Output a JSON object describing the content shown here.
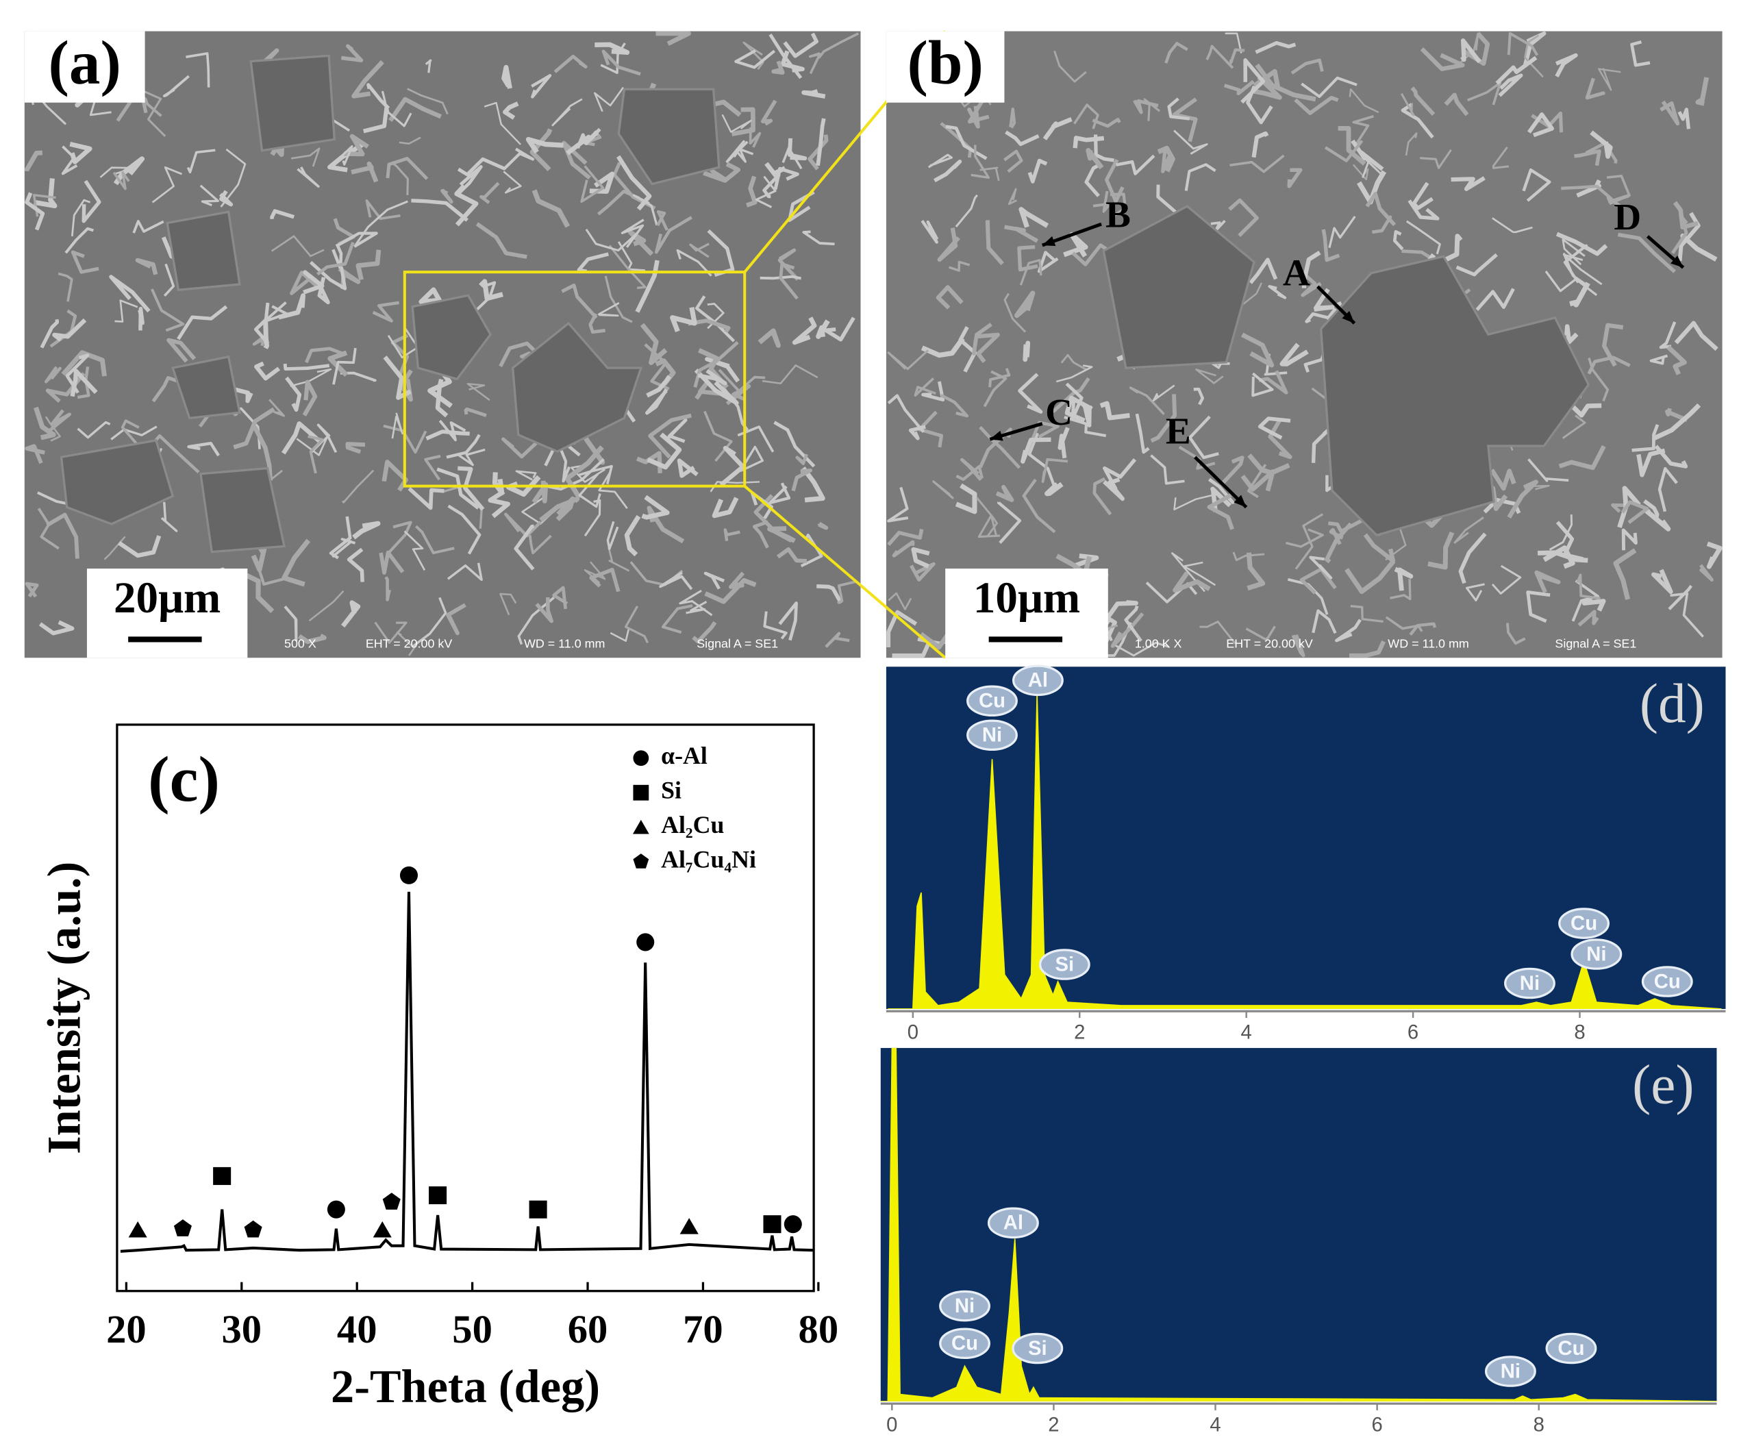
{
  "images": [
    {
      "label": "(a)",
      "scale_bar": "20μm",
      "info": [
        "500 X",
        "EHT = 20.00 kV",
        "WD = 11.0 mm",
        "Signal A = SE1"
      ]
    },
    {
      "label": "(b)",
      "scale_bar": "10μm",
      "info": [
        "1.00 K X",
        "EHT = 20.00 kV",
        "WD = 11.0 mm",
        "Signal A = SE1"
      ],
      "points": [
        "A",
        "B",
        "C",
        "D",
        "E"
      ]
    }
  ],
  "chart_data": [
    {
      "type": "line",
      "label": "(c)",
      "xlabel": "2-Theta (deg)",
      "ylabel": "Intensity (a.u.)",
      "xlim": [
        19.2,
        79.6
      ],
      "xticks": [
        20,
        30,
        40,
        50,
        60,
        70,
        80
      ],
      "ylim": [
        0,
        100
      ],
      "color": "#000000",
      "x": [
        19.5,
        21,
        24.8,
        25,
        25.2,
        28,
        28.3,
        28.6,
        31,
        35,
        38,
        38.2,
        38.4,
        42,
        42.5,
        43,
        44,
        44.5,
        45,
        46.7,
        47,
        47.3,
        55.5,
        55.7,
        55.9,
        64.6,
        65,
        65.4,
        68.8,
        75.8,
        76,
        76.2,
        77.5,
        77.7,
        77.9,
        79.5
      ],
      "values": [
        7,
        7.2,
        7.8,
        8,
        7.2,
        7.3,
        14.4,
        7.3,
        7.6,
        7.2,
        7.3,
        11,
        7.3,
        7.8,
        9,
        8,
        8,
        70.5,
        8,
        7.4,
        13.4,
        7.4,
        7.3,
        11.4,
        7.3,
        7.5,
        58,
        7.5,
        8.2,
        7.4,
        9.8,
        7.3,
        7.4,
        9.6,
        7.3,
        7.2
      ],
      "legend": [
        {
          "name": "α-Al",
          "shape": "circle"
        },
        {
          "name": "Si",
          "shape": "square"
        },
        {
          "name": "Al₂Cu",
          "shape": "triangle"
        },
        {
          "name": "Al₇Cu₄Ni",
          "shape": "pentagon"
        }
      ],
      "markers": [
        {
          "x": 44.5,
          "y": 73.4,
          "shape": "circle"
        },
        {
          "x": 65,
          "y": 61.6,
          "shape": "circle"
        },
        {
          "x": 38.2,
          "y": 14.4,
          "shape": "circle"
        },
        {
          "x": 77.8,
          "y": 11.8,
          "shape": "circle"
        },
        {
          "x": 28.3,
          "y": 20.3,
          "shape": "square"
        },
        {
          "x": 47,
          "y": 16.9,
          "shape": "square"
        },
        {
          "x": 55.7,
          "y": 14.4,
          "shape": "square"
        },
        {
          "x": 76,
          "y": 11.8,
          "shape": "square"
        },
        {
          "x": 21,
          "y": 10.8,
          "shape": "triangle"
        },
        {
          "x": 42.2,
          "y": 10.8,
          "shape": "triangle"
        },
        {
          "x": 68.8,
          "y": 11.4,
          "shape": "triangle"
        },
        {
          "x": 24.9,
          "y": 11,
          "shape": "pentagon"
        },
        {
          "x": 31,
          "y": 10.8,
          "shape": "pentagon"
        },
        {
          "x": 43,
          "y": 15.7,
          "shape": "pentagon"
        }
      ]
    },
    {
      "type": "area",
      "label": "(d)",
      "xlim": [
        -0.32,
        9.75
      ],
      "xticks": [
        0,
        2,
        4,
        6,
        8
      ],
      "ylim": [
        0,
        100
      ],
      "color": "#f2f200",
      "background": "#0b2e5e",
      "x": [
        -0.3,
        0,
        0.05,
        0.1,
        0.15,
        0.3,
        0.55,
        0.8,
        0.95,
        1.1,
        1.3,
        1.42,
        1.49,
        1.58,
        1.68,
        1.74,
        1.85,
        2.5,
        7.3,
        7.48,
        7.65,
        7.9,
        8.05,
        8.2,
        8.7,
        8.9,
        9.1,
        9.7
      ],
      "values": [
        0,
        0,
        30,
        34,
        5,
        1,
        2,
        6,
        73,
        10,
        3,
        10,
        92,
        10,
        4,
        8,
        2,
        1,
        1,
        2,
        1,
        2,
        14,
        2,
        1,
        3,
        1,
        0
      ],
      "annotations": [
        {
          "text": "Cu",
          "x": 0.95,
          "y": 90
        },
        {
          "text": "Ni",
          "x": 0.95,
          "y": 80
        },
        {
          "text": "Al",
          "x": 1.5,
          "y": 96
        },
        {
          "text": "Si",
          "x": 1.82,
          "y": 13
        },
        {
          "text": "Cu",
          "x": 8.05,
          "y": 25
        },
        {
          "text": "Ni",
          "x": 8.2,
          "y": 16
        },
        {
          "text": "Ni",
          "x": 7.4,
          "y": 7.5
        },
        {
          "text": "Cu",
          "x": 9.05,
          "y": 8
        }
      ]
    },
    {
      "type": "area",
      "label": "(e)",
      "xlim": [
        -0.14,
        10.2
      ],
      "xticks": [
        0,
        2,
        4,
        6,
        8
      ],
      "ylim": [
        0,
        100
      ],
      "color": "#f2f200",
      "background": "#0b2e5e",
      "x": [
        -0.14,
        -0.05,
        0,
        0.05,
        0.1,
        0.5,
        0.8,
        0.9,
        1.05,
        1.35,
        1.45,
        1.52,
        1.6,
        1.7,
        1.75,
        1.82,
        7.7,
        7.8,
        7.9,
        8.3,
        8.45,
        8.6,
        10.2
      ],
      "values": [
        0,
        0,
        100,
        100,
        2,
        1,
        4,
        10,
        4,
        2,
        25,
        46,
        10,
        2,
        4,
        1,
        0.5,
        1.5,
        0.5,
        1,
        2,
        0.5,
        0
      ],
      "annotations": [
        {
          "text": "Al",
          "x": 1.5,
          "y": 50.5
        },
        {
          "text": "Ni",
          "x": 0.9,
          "y": 27
        },
        {
          "text": "Cu",
          "x": 0.9,
          "y": 16.4
        },
        {
          "text": "Si",
          "x": 1.8,
          "y": 15
        },
        {
          "text": "Ni",
          "x": 7.65,
          "y": 8.5
        },
        {
          "text": "Cu",
          "x": 8.4,
          "y": 15
        }
      ]
    }
  ]
}
